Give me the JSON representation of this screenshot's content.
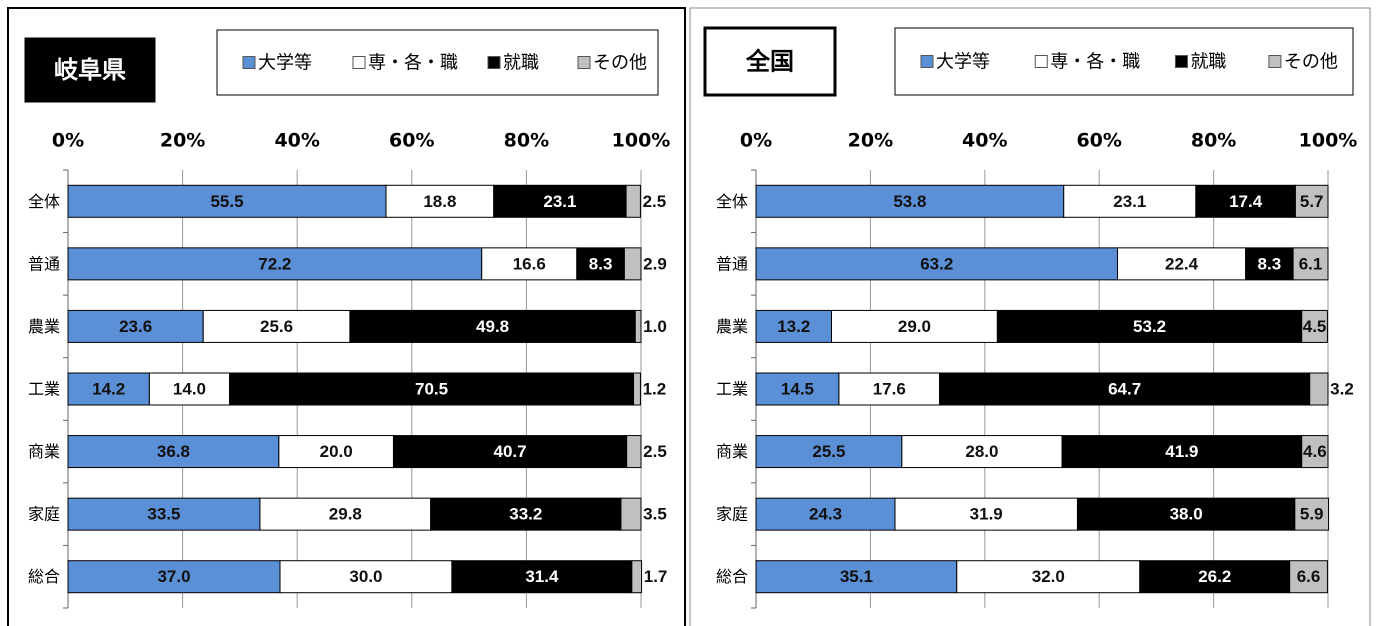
{
  "chart_data": [
    {
      "type": "stacked-barh",
      "title": "岐阜県",
      "title_style": "dark",
      "categories": [
        "全体",
        "普通",
        "農業",
        "工業",
        "商業",
        "家庭",
        "総合"
      ],
      "series": [
        {
          "name": "大学等",
          "color": "#5b8fd6",
          "values": [
            55.5,
            72.2,
            23.6,
            14.2,
            36.8,
            33.5,
            37.0
          ],
          "value_labels": [
            "55.5",
            "72.2",
            "23.6",
            "14.2",
            "36.8",
            "33.5",
            "37.0"
          ]
        },
        {
          "name": "専・各・職",
          "color": "#ffffff",
          "values": [
            18.8,
            16.6,
            25.6,
            14.0,
            20.0,
            29.8,
            30.0
          ],
          "value_labels": [
            "18.8",
            "16.6",
            "25.6",
            "14.0",
            "20.0",
            "29.8",
            "30.0"
          ]
        },
        {
          "name": "就職",
          "color": "#000000",
          "values": [
            23.1,
            8.3,
            49.8,
            70.5,
            40.7,
            33.2,
            31.4
          ],
          "value_labels": [
            "23.1",
            "8.3",
            "49.8",
            "70.5",
            "40.7",
            "33.2",
            "31.4"
          ]
        },
        {
          "name": "その他",
          "color": "#c0c0c0",
          "values": [
            2.5,
            2.9,
            1.0,
            1.2,
            2.5,
            3.5,
            1.7
          ],
          "value_labels": [
            "2.5",
            "2.9",
            "1.0",
            "1.2",
            "2.5",
            "3.5",
            "1.7"
          ]
        }
      ],
      "xlim": [
        0,
        100
      ],
      "xticks": [
        {
          "value": 0,
          "label": "0%"
        },
        {
          "value": 20,
          "label": "20%"
        },
        {
          "value": 40,
          "label": "40%"
        },
        {
          "value": 60,
          "label": "60%"
        },
        {
          "value": 80,
          "label": "80%"
        },
        {
          "value": 100,
          "label": "100%"
        }
      ],
      "grid": true
    },
    {
      "type": "stacked-barh",
      "title": "全国",
      "title_style": "light",
      "categories": [
        "全体",
        "普通",
        "農業",
        "工業",
        "商業",
        "家庭",
        "総合"
      ],
      "series": [
        {
          "name": "大学等",
          "color": "#5b8fd6",
          "values": [
            53.8,
            63.2,
            13.2,
            14.5,
            25.5,
            24.3,
            35.1
          ],
          "value_labels": [
            "53.8",
            "63.2",
            "13.2",
            "14.5",
            "25.5",
            "24.3",
            "35.1"
          ]
        },
        {
          "name": "専・各・職",
          "color": "#ffffff",
          "values": [
            23.1,
            22.4,
            29.0,
            17.6,
            28.0,
            31.9,
            32.0
          ],
          "value_labels": [
            "23.1",
            "22.4",
            "29.0",
            "17.6",
            "28.0",
            "31.9",
            "32.0"
          ]
        },
        {
          "name": "就職",
          "color": "#000000",
          "values": [
            17.4,
            8.3,
            53.2,
            64.7,
            41.9,
            38.0,
            26.2
          ],
          "value_labels": [
            "17.4",
            "8.3",
            "53.2",
            "64.7",
            "41.9",
            "38.0",
            "26.2"
          ]
        },
        {
          "name": "その他",
          "color": "#c0c0c0",
          "values": [
            5.7,
            6.1,
            4.5,
            3.2,
            4.6,
            5.9,
            6.6
          ],
          "value_labels": [
            "5.7",
            "6.1",
            "4.5",
            "3.2",
            "4.6",
            "5.9",
            "6.6"
          ]
        }
      ],
      "xlim": [
        0,
        100
      ],
      "xticks": [
        {
          "value": 0,
          "label": "0%"
        },
        {
          "value": 20,
          "label": "20%"
        },
        {
          "value": 40,
          "label": "40%"
        },
        {
          "value": 60,
          "label": "60%"
        },
        {
          "value": 80,
          "label": "80%"
        },
        {
          "value": 100,
          "label": "100%"
        }
      ],
      "grid": true
    }
  ]
}
